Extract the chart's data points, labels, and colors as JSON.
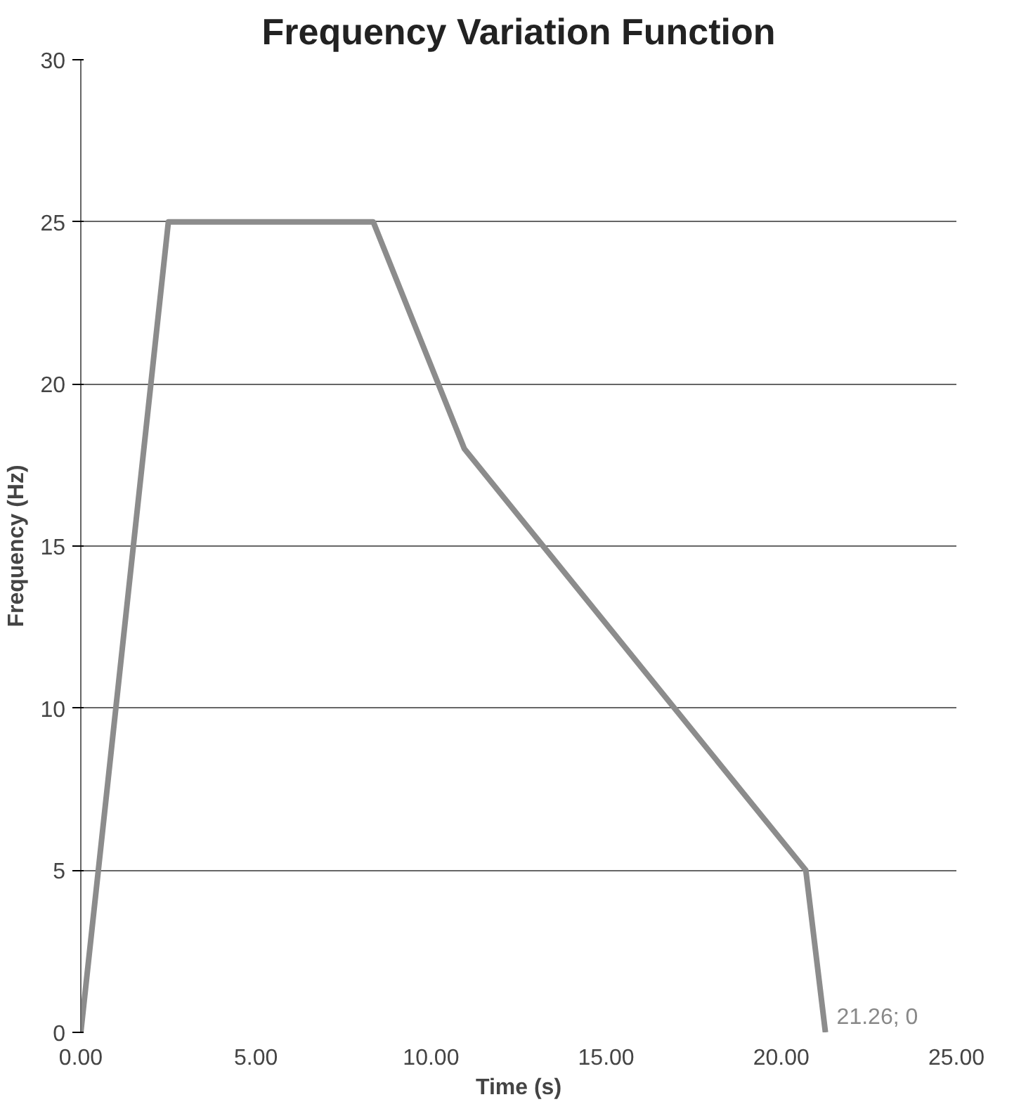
{
  "chart_data": {
    "type": "line",
    "title": "Frequency Variation Function",
    "xlabel": "Time (s)",
    "ylabel": "Frequency (Hz)",
    "x": [
      0,
      2.5,
      8.35,
      10.95,
      20.7,
      21.26
    ],
    "series": [
      {
        "color": "#8c8c8c",
        "values": [
          0,
          25,
          25,
          18,
          5,
          0
        ]
      }
    ],
    "xlim": [
      0,
      25
    ],
    "ylim": [
      0,
      30
    ],
    "xticks": [
      {
        "value": 0,
        "label": "0.00"
      },
      {
        "value": 5,
        "label": "5.00"
      },
      {
        "value": 10,
        "label": "10.00"
      },
      {
        "value": 15,
        "label": "15.00"
      },
      {
        "value": 20,
        "label": "20.00"
      },
      {
        "value": 25,
        "label": "25.00"
      }
    ],
    "yticks": [
      0,
      5,
      10,
      15,
      20,
      25,
      30
    ],
    "grid": "y",
    "marker": "none",
    "line_style": "solid",
    "annotations": [
      {
        "text": "21.26; 0",
        "x": 21.26,
        "y": 0
      }
    ]
  }
}
